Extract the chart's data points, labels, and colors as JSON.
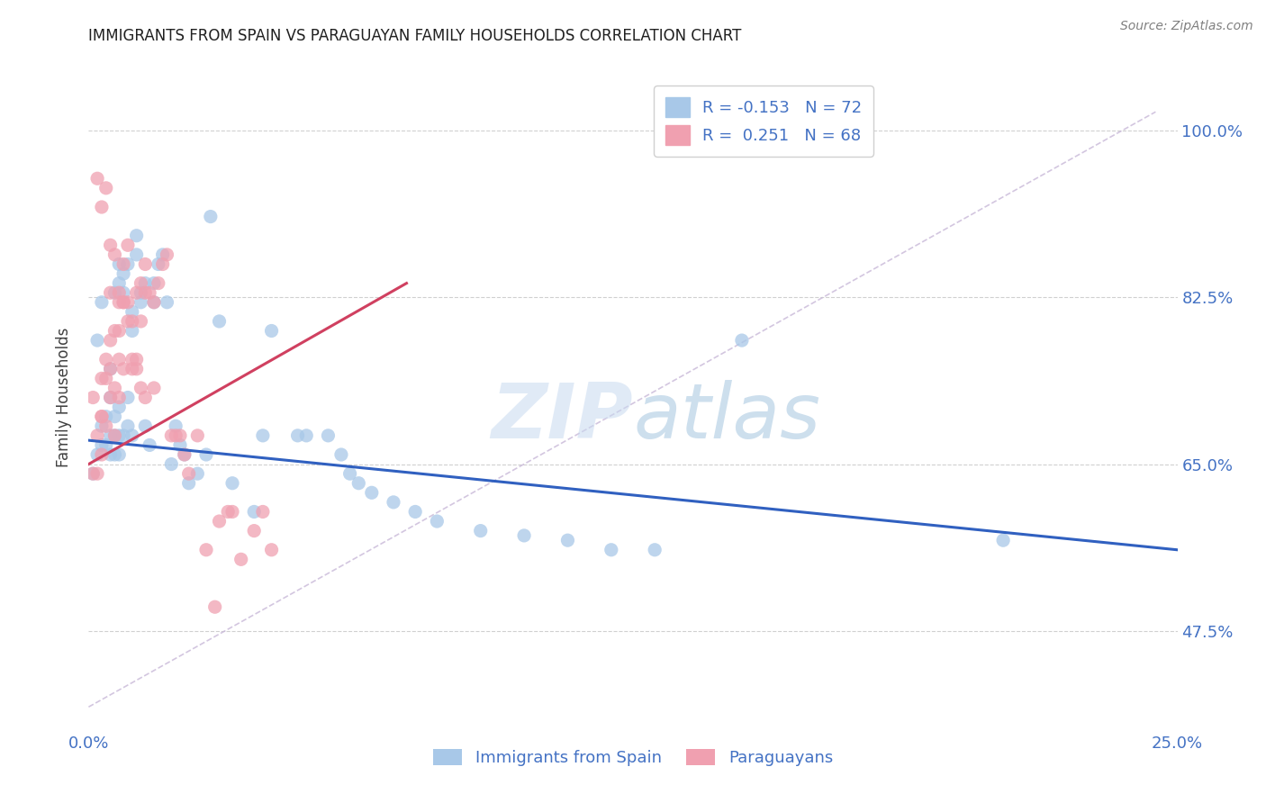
{
  "title": "IMMIGRANTS FROM SPAIN VS PARAGUAYAN FAMILY HOUSEHOLDS CORRELATION CHART",
  "source": "Source: ZipAtlas.com",
  "ylabel": "Family Households",
  "yticks": [
    0.475,
    0.65,
    0.825,
    1.0
  ],
  "ytick_labels": [
    "47.5%",
    "65.0%",
    "82.5%",
    "100.0%"
  ],
  "legend_entries": [
    {
      "label": "Immigrants from Spain",
      "color": "#aec6e8",
      "R": "-0.153",
      "N": "72"
    },
    {
      "label": "Paraguayans",
      "color": "#f4b8c1",
      "R": "0.251",
      "N": "68"
    }
  ],
  "blue_scatter_x": [
    0.001,
    0.002,
    0.003,
    0.003,
    0.004,
    0.004,
    0.005,
    0.005,
    0.005,
    0.006,
    0.006,
    0.006,
    0.007,
    0.007,
    0.007,
    0.007,
    0.008,
    0.008,
    0.009,
    0.009,
    0.01,
    0.01,
    0.01,
    0.011,
    0.011,
    0.012,
    0.012,
    0.013,
    0.013,
    0.014,
    0.015,
    0.015,
    0.016,
    0.017,
    0.018,
    0.019,
    0.02,
    0.021,
    0.022,
    0.023,
    0.025,
    0.027,
    0.028,
    0.03,
    0.033,
    0.038,
    0.04,
    0.042,
    0.048,
    0.05,
    0.055,
    0.058,
    0.06,
    0.062,
    0.065,
    0.07,
    0.075,
    0.08,
    0.09,
    0.1,
    0.11,
    0.12,
    0.13,
    0.002,
    0.003,
    0.005,
    0.006,
    0.007,
    0.008,
    0.009,
    0.21,
    0.15
  ],
  "blue_scatter_y": [
    0.64,
    0.66,
    0.67,
    0.69,
    0.67,
    0.7,
    0.66,
    0.68,
    0.72,
    0.66,
    0.68,
    0.7,
    0.66,
    0.68,
    0.71,
    0.86,
    0.83,
    0.68,
    0.69,
    0.72,
    0.79,
    0.81,
    0.68,
    0.87,
    0.89,
    0.82,
    0.83,
    0.84,
    0.69,
    0.67,
    0.82,
    0.84,
    0.86,
    0.87,
    0.82,
    0.65,
    0.69,
    0.67,
    0.66,
    0.63,
    0.64,
    0.66,
    0.91,
    0.8,
    0.63,
    0.6,
    0.68,
    0.79,
    0.68,
    0.68,
    0.68,
    0.66,
    0.64,
    0.63,
    0.62,
    0.61,
    0.6,
    0.59,
    0.58,
    0.575,
    0.57,
    0.56,
    0.56,
    0.78,
    0.82,
    0.75,
    0.83,
    0.84,
    0.85,
    0.86,
    0.57,
    0.78
  ],
  "pink_scatter_x": [
    0.001,
    0.001,
    0.002,
    0.002,
    0.003,
    0.003,
    0.003,
    0.003,
    0.004,
    0.004,
    0.004,
    0.005,
    0.005,
    0.005,
    0.005,
    0.006,
    0.006,
    0.006,
    0.007,
    0.007,
    0.007,
    0.007,
    0.008,
    0.008,
    0.008,
    0.009,
    0.009,
    0.01,
    0.01,
    0.011,
    0.011,
    0.012,
    0.012,
    0.013,
    0.013,
    0.014,
    0.015,
    0.015,
    0.016,
    0.017,
    0.018,
    0.019,
    0.02,
    0.021,
    0.022,
    0.023,
    0.025,
    0.027,
    0.029,
    0.03,
    0.032,
    0.033,
    0.035,
    0.038,
    0.04,
    0.042,
    0.002,
    0.003,
    0.004,
    0.005,
    0.006,
    0.007,
    0.008,
    0.009,
    0.01,
    0.011,
    0.012,
    0.013
  ],
  "pink_scatter_y": [
    0.72,
    0.64,
    0.68,
    0.64,
    0.66,
    0.7,
    0.74,
    0.7,
    0.69,
    0.74,
    0.76,
    0.72,
    0.75,
    0.78,
    0.83,
    0.68,
    0.73,
    0.79,
    0.72,
    0.76,
    0.79,
    0.82,
    0.75,
    0.82,
    0.86,
    0.82,
    0.88,
    0.75,
    0.8,
    0.76,
    0.83,
    0.8,
    0.84,
    0.86,
    0.83,
    0.83,
    0.73,
    0.82,
    0.84,
    0.86,
    0.87,
    0.68,
    0.68,
    0.68,
    0.66,
    0.64,
    0.68,
    0.56,
    0.5,
    0.59,
    0.6,
    0.6,
    0.55,
    0.58,
    0.6,
    0.56,
    0.95,
    0.92,
    0.94,
    0.88,
    0.87,
    0.83,
    0.82,
    0.8,
    0.76,
    0.75,
    0.73,
    0.72
  ],
  "blue_line_x": [
    0.0,
    0.25
  ],
  "blue_line_y": [
    0.675,
    0.56
  ],
  "pink_line_x": [
    0.0,
    0.073
  ],
  "pink_line_y": [
    0.65,
    0.84
  ],
  "dashed_line_x": [
    0.0,
    0.245
  ],
  "dashed_line_y": [
    0.395,
    1.02
  ],
  "scatter_color_blue": "#a8c8e8",
  "scatter_color_pink": "#f0a0b0",
  "line_color_blue": "#3060c0",
  "line_color_pink": "#d04060",
  "dashed_line_color": "#c8b8d8",
  "bg_color": "#ffffff",
  "grid_color": "#d0d0d0",
  "title_color": "#202020",
  "source_color": "#808080",
  "axis_label_color": "#4472c4",
  "xlim": [
    0.0,
    0.25
  ],
  "ylim": [
    0.37,
    1.07
  ]
}
